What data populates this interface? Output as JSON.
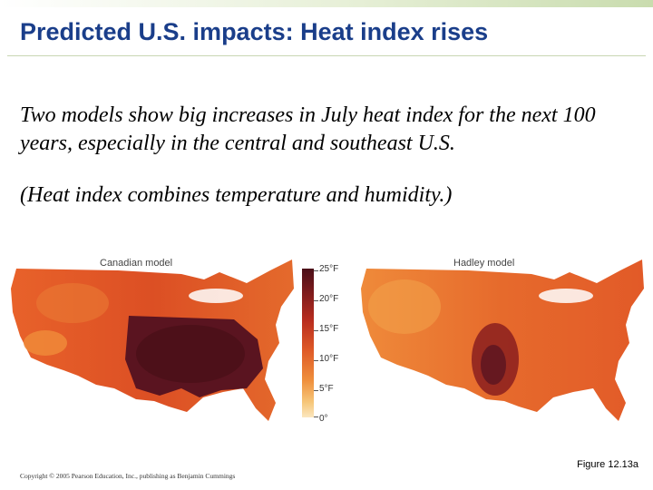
{
  "slide": {
    "title": "Predicted U.S. impacts: Heat index rises",
    "paragraph_1": "Two models show big increases in July heat index for the next 100 years, especially in the central and southeast U.S.",
    "paragraph_2": "(Heat index combines temperature and humidity.)",
    "figure_label": "Figure 12.13a",
    "copyright": "Copyright © 2005 Pearson Education, Inc., publishing as Benjamin Cummings"
  },
  "figure": {
    "left_map": {
      "label": "Canadian model"
    },
    "right_map": {
      "label": "Hadley model"
    },
    "legend": {
      "ticks": [
        "25°F",
        "20°F",
        "15°F",
        "10°F",
        "5°F",
        "0°"
      ]
    },
    "colors": {
      "darkest": "#4a0f18",
      "dark": "#7a1a1c",
      "red": "#b92d1f",
      "orange": "#df5a27",
      "light_orange": "#ef8f3c",
      "pale": "#fbe7bf"
    }
  }
}
